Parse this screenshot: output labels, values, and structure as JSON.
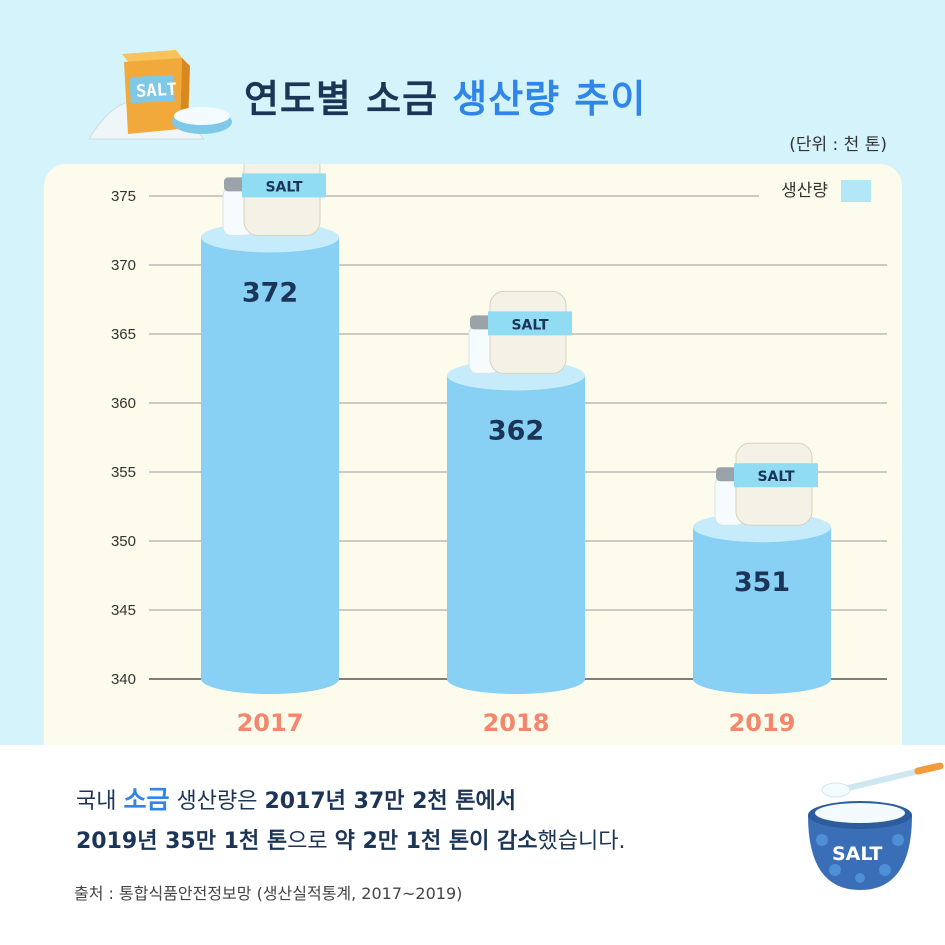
{
  "title": {
    "part1": "연도별 소금",
    "part2": "생산량 추이"
  },
  "unit": "(단위 : 천 톤)",
  "box_label": "SALT",
  "bag_label": "SALT",
  "bowl_label": "SALT",
  "chart_data": {
    "type": "bar",
    "categories": [
      "2017",
      "2018",
      "2019"
    ],
    "series": [
      {
        "name": "생산량",
        "values": [
          372,
          362,
          351
        ]
      }
    ],
    "data_labels": [
      "372",
      "362",
      "351"
    ],
    "yticks": [
      "375",
      "370",
      "365",
      "360",
      "355",
      "350",
      "345",
      "340"
    ],
    "ylim": [
      340,
      375
    ],
    "grid": true,
    "legend_position": "top-right",
    "bar_color": "#88d1f5",
    "bar_top_color": "#c6ecfb"
  },
  "summary": {
    "l1a": "국내 ",
    "l1b": "소금",
    "l1c": " 생산량은 ",
    "l1d": "2017년 37만 2천 톤에서",
    "l2a": "2019년 35만 1천 톤",
    "l2b": "으로 ",
    "l2c": "약 2만 1천 톤이 감소",
    "l2d": "했습니다."
  },
  "source": "출처 : 통합식품안전정보망 (생산실적통계, 2017~2019)",
  "colors": {
    "background": "#d5f3fb",
    "panel": "#fdfbec",
    "accent": "#2f86e8",
    "year": "#f2876d",
    "text": "#1c3556"
  }
}
